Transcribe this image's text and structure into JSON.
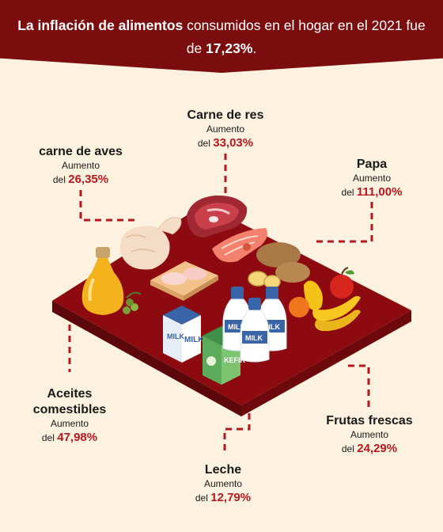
{
  "headline": {
    "part1": "La inflación de alimentos",
    "part2": " consumidos en el hogar en el 2021 fue de ",
    "value": "17,23%",
    "end": "."
  },
  "increase_word": "Aumento",
  "del_word": "del",
  "items": [
    {
      "name": "Carne de res",
      "percent": "33,03%"
    },
    {
      "name": "carne de aves",
      "percent": "26,35%"
    },
    {
      "name": "Papa",
      "percent": "111,00%"
    },
    {
      "name": "Aceites comestibles",
      "name_line1": "Aceites",
      "name_line2": "comestibles",
      "percent": "47,98%"
    },
    {
      "name": "Frutas frescas",
      "percent": "24,29%"
    },
    {
      "name": "Leche",
      "percent": "12,79%"
    }
  ],
  "packaging_text": {
    "milk": "MILK",
    "kefir": "KEFIR"
  },
  "colors": {
    "banner": "#7c0d0f",
    "background": "#fdf1df",
    "accent": "#b5191f",
    "table_top": "#8d0b10",
    "table_side": "#5c070a"
  }
}
